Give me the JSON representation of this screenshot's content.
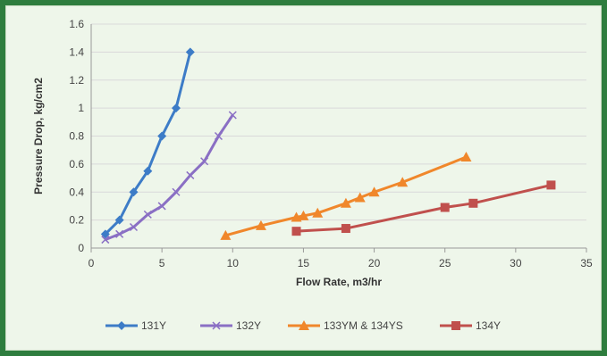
{
  "chart_data": {
    "type": "line",
    "title": "",
    "xlabel": "Flow Rate, m3/hr",
    "ylabel": "Pressure Drop, kg/cm2",
    "xlim": [
      0,
      35
    ],
    "ylim": [
      0,
      1.6
    ],
    "xticks": [
      "0",
      "5",
      "10",
      "15",
      "20",
      "25",
      "30",
      "35"
    ],
    "yticks": [
      "0",
      "0.2",
      "0.4",
      "0.6",
      "0.8",
      "1",
      "1.2",
      "1.4",
      "1.6"
    ],
    "grid": "horizontal",
    "legend": "bottom",
    "series": [
      {
        "name": "131Y",
        "color": "#3d7cc7",
        "marker": "diamond",
        "x": [
          1,
          2,
          3,
          4,
          5,
          6,
          7
        ],
        "y": [
          0.1,
          0.2,
          0.4,
          0.55,
          0.8,
          1.0,
          1.4
        ]
      },
      {
        "name": "132Y",
        "color": "#8a6fc4",
        "marker": "cross",
        "x": [
          1,
          2,
          3,
          4,
          5,
          6,
          7,
          8,
          9,
          10
        ],
        "y": [
          0.06,
          0.1,
          0.15,
          0.24,
          0.3,
          0.4,
          0.52,
          0.62,
          0.8,
          0.95
        ]
      },
      {
        "name": "133YM & 134YS",
        "color": "#f0872b",
        "marker": "triangle",
        "x": [
          9.5,
          12,
          14.5,
          15,
          16,
          18,
          19,
          20,
          22,
          26.5
        ],
        "y": [
          0.09,
          0.16,
          0.22,
          0.23,
          0.25,
          0.32,
          0.36,
          0.4,
          0.47,
          0.65
        ]
      },
      {
        "name": "134Y",
        "color": "#c0504d",
        "marker": "square",
        "x": [
          14.5,
          18,
          25,
          27,
          32.5
        ],
        "y": [
          0.12,
          0.14,
          0.29,
          0.32,
          0.45
        ]
      }
    ]
  }
}
